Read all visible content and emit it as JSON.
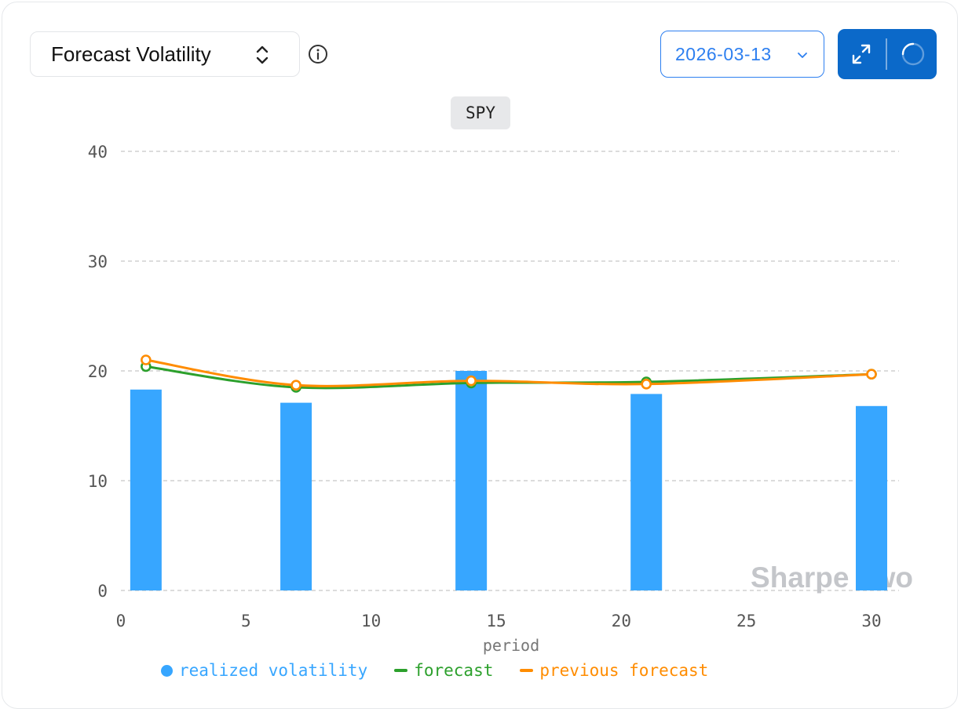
{
  "header": {
    "selector_label": "Forecast Volatility",
    "date_value": "2026-03-13"
  },
  "icons": {
    "selector": "chevron-up-down-icon",
    "info": "info-circle-icon",
    "date": "chevron-down-icon",
    "expand": "expand-arrows-icon",
    "refresh": "loading-spinner-icon"
  },
  "colors": {
    "accent": "#2d7ff0",
    "action_bg": "#0b69c9",
    "bar": "#37a6ff",
    "forecast": "#2ca02c",
    "previous_forecast": "#ff8c00",
    "watermark": "#c4c6ca"
  },
  "watermark": "Sharpe Two",
  "chart_data": {
    "type": "bar",
    "title": "SPY",
    "xlabel": "period",
    "ylabel": "",
    "xlim": [
      0,
      31
    ],
    "ylim": [
      0,
      40
    ],
    "x_ticks": [
      0,
      5,
      10,
      15,
      20,
      25,
      30
    ],
    "y_ticks": [
      0,
      10,
      20,
      30,
      40
    ],
    "grid": "horizontal dashed",
    "legend_placement": "bottom",
    "series": [
      {
        "name": "realized volatility",
        "kind": "bar",
        "color": "#37a6ff",
        "points": [
          [
            1,
            18.3
          ],
          [
            7,
            17.1
          ],
          [
            14,
            20.0
          ],
          [
            21,
            17.9
          ],
          [
            30,
            16.8
          ]
        ]
      },
      {
        "name": "forecast",
        "kind": "line",
        "color": "#2ca02c",
        "points": [
          [
            1,
            20.4
          ],
          [
            7,
            18.5
          ],
          [
            14,
            18.9
          ],
          [
            21,
            19.0
          ],
          [
            30,
            19.7
          ]
        ]
      },
      {
        "name": "previous forecast",
        "kind": "line",
        "color": "#ff8c00",
        "points": [
          [
            1,
            21.0
          ],
          [
            7,
            18.7
          ],
          [
            14,
            19.1
          ],
          [
            21,
            18.8
          ],
          [
            30,
            19.7
          ]
        ]
      }
    ]
  }
}
